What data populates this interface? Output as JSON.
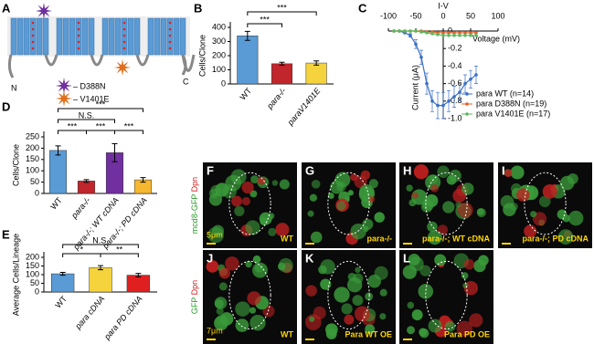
{
  "panel_letters": [
    "A",
    "B",
    "C",
    "D",
    "E"
  ],
  "diagram": {
    "n_label": "N",
    "c_label": "C",
    "mutations": [
      "– D388N",
      "– V1401E"
    ]
  },
  "chart_data": [
    {
      "type": "bar",
      "y_label": "Cells/Clone",
      "categories": [
        "WT",
        "para-/-",
        "paraV1401E"
      ],
      "values": [
        340,
        143,
        148
      ],
      "errors": [
        32,
        10,
        15
      ],
      "colors": [
        "#5b9bd5",
        "#c0262c",
        "#f5d33c"
      ],
      "ylim": [
        0,
        400
      ],
      "yticks": [
        0,
        100,
        200,
        300,
        400
      ],
      "annotations": [
        "***",
        "***"
      ]
    },
    {
      "type": "line",
      "title": "I-V",
      "x_label": "Voltage (mV)",
      "y_label": "Current (μA)",
      "x": [
        -90,
        -80,
        -70,
        -60,
        -50,
        -40,
        -30,
        -20,
        -10,
        0,
        10,
        20,
        30,
        40,
        50,
        60
      ],
      "xlim": [
        -100,
        100
      ],
      "xticks": [
        -100,
        -50,
        0,
        50,
        100
      ],
      "ylim": [
        -1,
        0
      ],
      "yticks": [
        0,
        -0.2,
        -0.4,
        -0.6,
        -0.8,
        {
          "value": -1,
          "label": "-1.0"
        }
      ],
      "series": [
        {
          "name": "para WT (n=14)",
          "color": "#3a6fc4",
          "values": [
            0,
            0,
            -0.02,
            -0.05,
            -0.15,
            -0.3,
            -0.6,
            -0.8,
            -0.85,
            -0.85,
            -0.8,
            -0.75,
            -0.7,
            -0.6,
            -0.55,
            -0.5
          ],
          "errors": [
            0,
            0,
            0.01,
            0.02,
            0.05,
            0.08,
            0.12,
            0.12,
            0.15,
            0.15,
            0.12,
            0.12,
            0.1,
            0.1,
            0.1,
            0.1
          ]
        },
        {
          "name": "para D388N (n=19)",
          "color": "#e0622a",
          "values": [
            0,
            0,
            0,
            0,
            0,
            0,
            -0.01,
            -0.01,
            -0.02,
            -0.02,
            -0.02,
            -0.02,
            -0.02,
            -0.02,
            -0.02,
            -0.02
          ]
        },
        {
          "name": "para V1401E (n=17)",
          "color": "#5cb85c",
          "values": [
            0,
            0,
            0,
            0,
            0,
            -0.01,
            -0.02,
            -0.03,
            -0.04,
            -0.05,
            -0.05,
            -0.05,
            -0.05,
            -0.05,
            -0.05,
            -0.05
          ]
        }
      ]
    },
    {
      "type": "bar",
      "y_label": "Cells/Clone",
      "categories": [
        "WT",
        "para-/-",
        "para-/-; WT cDNA",
        "para-/-; PD cDNA"
      ],
      "values": [
        190,
        55,
        180,
        60
      ],
      "errors": [
        20,
        6,
        40,
        10
      ],
      "colors": [
        "#5b9bd5",
        "#c0262c",
        "#7030a0",
        "#f5b830"
      ],
      "ylim": [
        0,
        250
      ],
      "yticks": [
        0,
        50,
        100,
        150,
        200,
        250
      ],
      "annotations": [
        "***",
        "N.S.",
        "***",
        "***",
        "***"
      ]
    },
    {
      "type": "bar",
      "y_label": "Average Cells/Lineage",
      "categories": [
        "WT",
        "para cDNA",
        "para PD cDNA"
      ],
      "values": [
        105,
        140,
        97
      ],
      "errors": [
        8,
        12,
        10
      ],
      "colors": [
        "#5b9bd5",
        "#f5d33c",
        "#e02020"
      ],
      "ylim": [
        0,
        200
      ],
      "yticks": [
        0,
        50,
        100,
        150,
        200
      ],
      "annotations": [
        "N.S.",
        "*",
        "**"
      ]
    }
  ],
  "side_labels": [
    {
      "green": "mcd8-GFP",
      "red": "Dpn"
    },
    {
      "green": "GFP",
      "red": "Dpn"
    }
  ],
  "images": [
    {
      "letter": "F",
      "label": "WT",
      "scale": "5μm"
    },
    {
      "letter": "G",
      "label": "para-/-"
    },
    {
      "letter": "H",
      "label": "para-/-; WT cDNA"
    },
    {
      "letter": "I",
      "label": "para-/-; PD cDNA"
    },
    {
      "letter": "J",
      "label": "WT",
      "scale": "7μm"
    },
    {
      "letter": "K",
      "label": "Para WT OE"
    },
    {
      "letter": "L",
      "label": "Para PD OE"
    }
  ]
}
